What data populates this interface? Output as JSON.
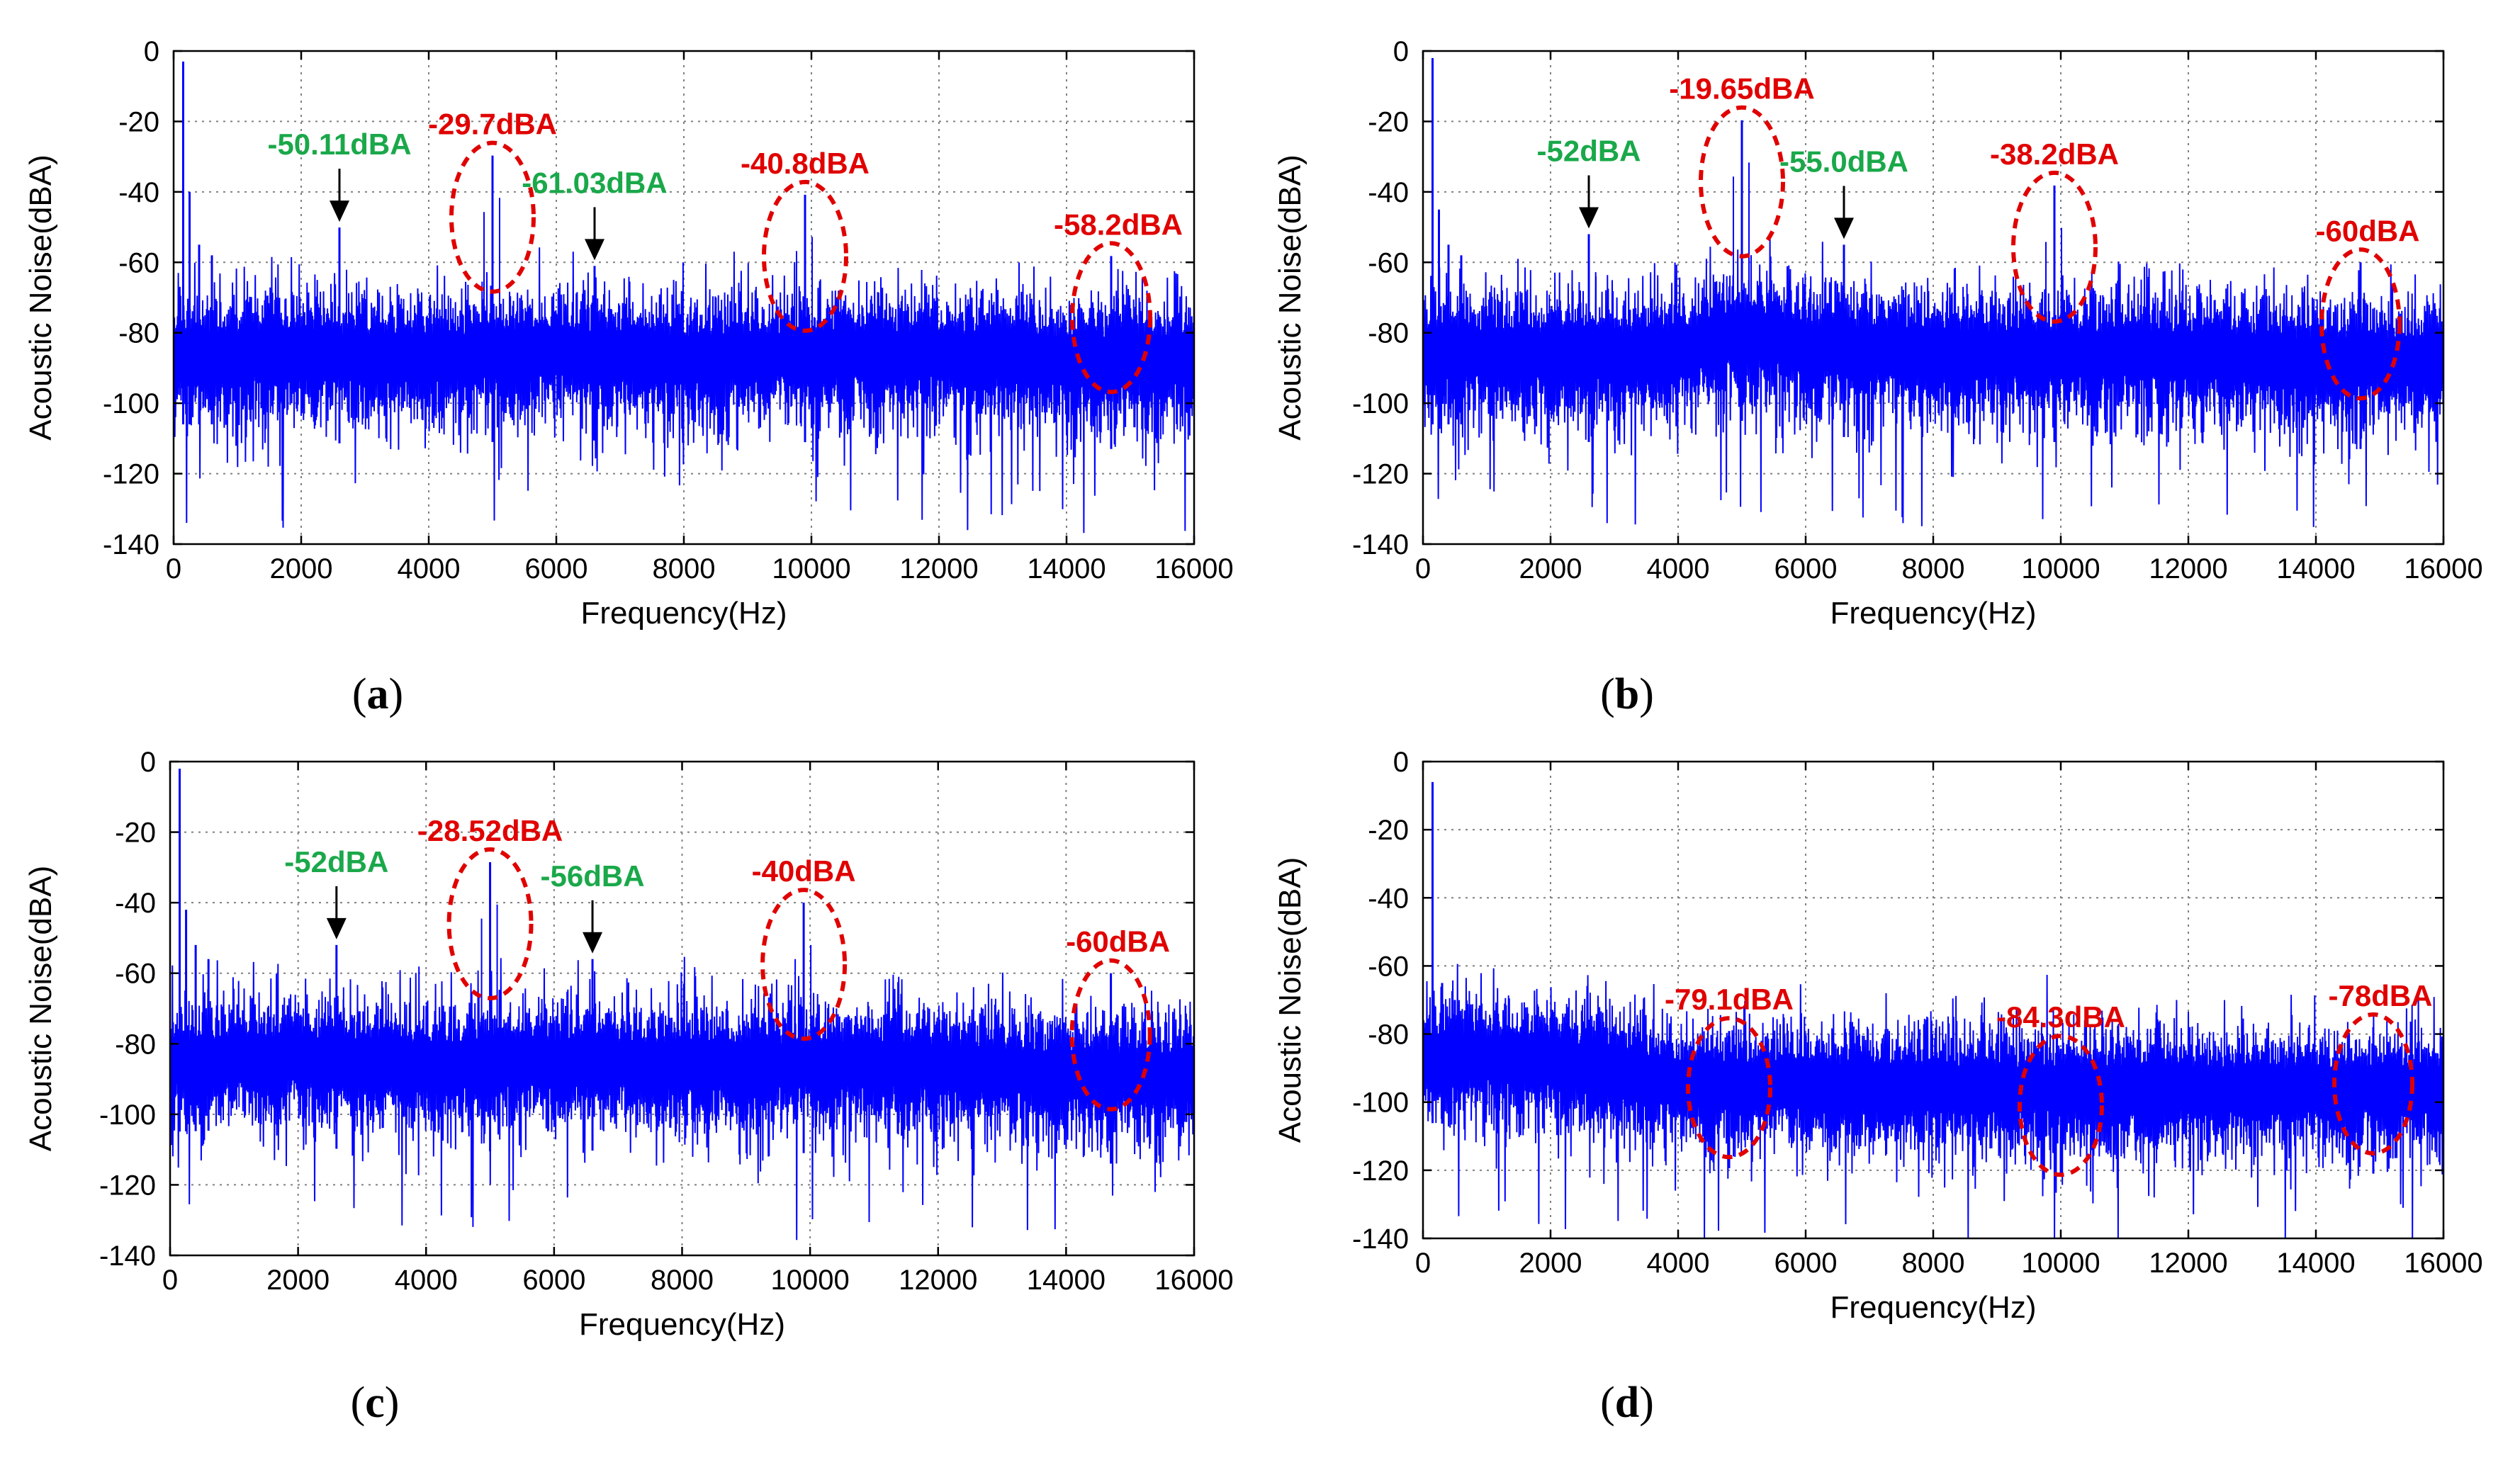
{
  "colors": {
    "spectrum": "#0000ff",
    "peak_label": "#e00000",
    "harmonic_label": "#1aa84a",
    "arrow": "#000000",
    "grid": "#808080"
  },
  "chart_data": [
    {
      "id": "a",
      "type": "line",
      "caption": "(a)",
      "caption_letter": "a",
      "xlabel": "Frequency(Hz)",
      "ylabel": "Acoustic Noise(dBA)",
      "xlim": [
        0,
        16000
      ],
      "ylim": [
        -140,
        0
      ],
      "x_ticks": [
        "0",
        "2000",
        "4000",
        "6000",
        "8000",
        "10000",
        "12000",
        "14000",
        "16000"
      ],
      "y_ticks": [
        "0",
        "-20",
        "-40",
        "-60",
        "-80",
        "-100",
        "-120",
        "-140"
      ],
      "grid": true,
      "noise_profile": [
        [
          0,
          -86
        ],
        [
          1700,
          -86
        ],
        [
          4000,
          -87
        ],
        [
          6000,
          -85
        ],
        [
          8000,
          -87
        ],
        [
          10000,
          -86
        ],
        [
          12000,
          -86
        ],
        [
          14000,
          -88
        ],
        [
          16000,
          -88
        ]
      ],
      "low_freq_peaks": [
        [
          150,
          -3
        ],
        [
          250,
          -40
        ],
        [
          400,
          -55
        ],
        [
          600,
          -58
        ]
      ],
      "peaks": [
        {
          "label": "-50.11dBA",
          "color": "green",
          "freq": 2600,
          "value": -50.11,
          "marker": "arrow"
        },
        {
          "label": "-29.7dBA",
          "color": "red",
          "freq": 5000,
          "value": -29.7,
          "marker": "ellipse"
        },
        {
          "label": "-61.03dBA",
          "color": "green",
          "freq": 6600,
          "value": -61.03,
          "marker": "arrow"
        },
        {
          "label": "-40.8dBA",
          "color": "red",
          "freq": 9900,
          "value": -40.8,
          "marker": "ellipse"
        },
        {
          "label": "-58.2dBA",
          "color": "red",
          "freq": 14700,
          "value": -58.2,
          "marker": "ellipse"
        }
      ]
    },
    {
      "id": "b",
      "type": "line",
      "caption": "(b)",
      "caption_letter": "b",
      "xlabel": "Frequency(Hz)",
      "ylabel": "Acoustic Noise(dBA)",
      "xlim": [
        0,
        16000
      ],
      "ylim": [
        -140,
        0
      ],
      "x_ticks": [
        "0",
        "2000",
        "4000",
        "6000",
        "8000",
        "10000",
        "12000",
        "14000",
        "16000"
      ],
      "y_ticks": [
        "0",
        "-20",
        "-40",
        "-60",
        "-80",
        "-100",
        "-120",
        "-140"
      ],
      "grid": true,
      "noise_profile": [
        [
          0,
          -86
        ],
        [
          1700,
          -86
        ],
        [
          4000,
          -86
        ],
        [
          5000,
          -80
        ],
        [
          6000,
          -84
        ],
        [
          8000,
          -86
        ],
        [
          10000,
          -86
        ],
        [
          12000,
          -86
        ],
        [
          14000,
          -88
        ],
        [
          16000,
          -88
        ]
      ],
      "low_freq_peaks": [
        [
          150,
          -2
        ],
        [
          250,
          -45
        ],
        [
          400,
          -55
        ],
        [
          600,
          -58
        ]
      ],
      "peaks": [
        {
          "label": "-52dBA",
          "color": "green",
          "freq": 2600,
          "value": -52,
          "marker": "arrow"
        },
        {
          "label": "-19.65dBA",
          "color": "red",
          "freq": 5000,
          "value": -19.65,
          "marker": "ellipse"
        },
        {
          "label": "-55.0dBA",
          "color": "green",
          "freq": 6600,
          "value": -55.0,
          "marker": "arrow"
        },
        {
          "label": "-38.2dBA",
          "color": "red",
          "freq": 9900,
          "value": -38.2,
          "marker": "ellipse"
        },
        {
          "label": "-60dBA",
          "color": "red",
          "freq": 14700,
          "value": -60,
          "marker": "ellipse"
        }
      ]
    },
    {
      "id": "c",
      "type": "line",
      "caption": "(c)",
      "caption_letter": "c",
      "xlabel": "Frequency(Hz)",
      "ylabel": "Acoustic Noise(dBA)",
      "xlim": [
        0,
        16000
      ],
      "ylim": [
        -140,
        0
      ],
      "x_ticks": [
        "0",
        "2000",
        "4000",
        "6000",
        "8000",
        "10000",
        "12000",
        "14000",
        "16000"
      ],
      "y_ticks": [
        "0",
        "-20",
        "-40",
        "-60",
        "-80",
        "-100",
        "-120",
        "-140"
      ],
      "grid": true,
      "noise_profile": [
        [
          0,
          -85
        ],
        [
          1700,
          -84
        ],
        [
          4000,
          -86
        ],
        [
          6000,
          -85
        ],
        [
          8000,
          -86
        ],
        [
          10000,
          -86
        ],
        [
          12000,
          -86
        ],
        [
          14000,
          -89
        ],
        [
          16000,
          -89
        ]
      ],
      "low_freq_peaks": [
        [
          150,
          -2
        ],
        [
          250,
          -42
        ],
        [
          400,
          -52
        ],
        [
          600,
          -56
        ]
      ],
      "peaks": [
        {
          "label": "-52dBA",
          "color": "green",
          "freq": 2600,
          "value": -52,
          "marker": "arrow"
        },
        {
          "label": "-28.52dBA",
          "color": "red",
          "freq": 5000,
          "value": -28.52,
          "marker": "ellipse"
        },
        {
          "label": "-56dBA",
          "color": "green",
          "freq": 6600,
          "value": -56,
          "marker": "arrow"
        },
        {
          "label": "-40dBA",
          "color": "red",
          "freq": 9900,
          "value": -40,
          "marker": "ellipse"
        },
        {
          "label": "-60dBA",
          "color": "red",
          "freq": 14700,
          "value": -60,
          "marker": "ellipse"
        }
      ]
    },
    {
      "id": "d",
      "type": "line",
      "caption": "(d)",
      "caption_letter": "d",
      "xlabel": "Frequency(Hz)",
      "ylabel": "Acoustic Noise(dBA)",
      "xlim": [
        0,
        16000
      ],
      "ylim": [
        -140,
        0
      ],
      "x_ticks": [
        "0",
        "2000",
        "4000",
        "6000",
        "8000",
        "10000",
        "12000",
        "14000",
        "16000"
      ],
      "y_ticks": [
        "0",
        "-20",
        "-40",
        "-60",
        "-80",
        "-100",
        "-120",
        "-140"
      ],
      "grid": true,
      "noise_profile": [
        [
          0,
          -86
        ],
        [
          2000,
          -88
        ],
        [
          4000,
          -94
        ],
        [
          6000,
          -95
        ],
        [
          8000,
          -96
        ],
        [
          10000,
          -96
        ],
        [
          12000,
          -96
        ],
        [
          14000,
          -96
        ],
        [
          16000,
          -96
        ]
      ],
      "low_freq_peaks": [
        [
          150,
          -6
        ],
        [
          300,
          -65
        ],
        [
          500,
          -70
        ]
      ],
      "peaks": [
        {
          "label": "-79.1dBA",
          "color": "red",
          "freq": 4800,
          "value": -79.1,
          "marker": "ellipse"
        },
        {
          "label": "-84.3dBA",
          "color": "red",
          "freq": 10000,
          "value": -84.3,
          "marker": "ellipse"
        },
        {
          "label": "-78dBA",
          "color": "red",
          "freq": 14900,
          "value": -78,
          "marker": "ellipse"
        }
      ]
    }
  ]
}
